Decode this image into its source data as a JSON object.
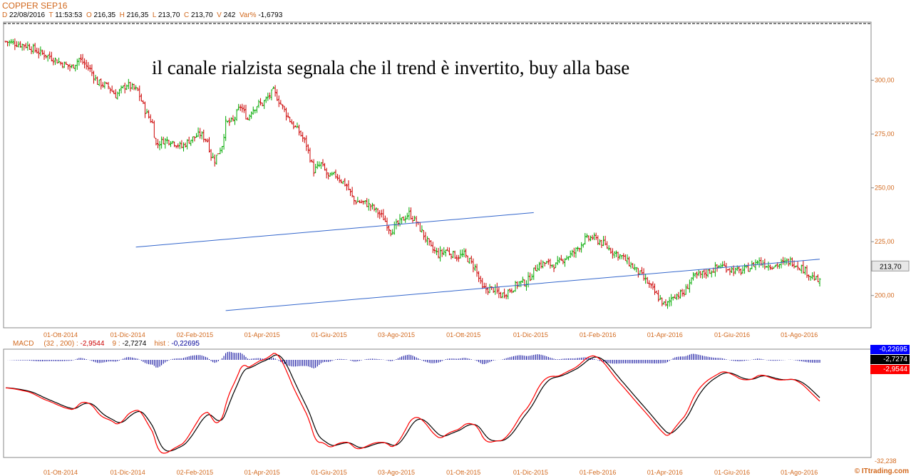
{
  "header": {
    "symbol": "COPPER SEP16",
    "date_k": "D",
    "date": "22/08/2016",
    "time_k": "T",
    "time": "11:53:53",
    "open_k": "O",
    "open": "216,35",
    "high_k": "H",
    "high": "216,35",
    "low_k": "L",
    "low": "213,70",
    "close_k": "C",
    "close": "213,70",
    "vol_k": "V",
    "vol": "242",
    "var_k": "Var%",
    "var": "-1,6793"
  },
  "annotation": "il canale rialzista segnala che il trend è invertito, buy alla base",
  "watermark": "© ITtrading.com",
  "macd_header": {
    "name": "MACD",
    "params": "(32 , 200) :",
    "macd_value": "-2,9544",
    "signal_k": "9 :",
    "signal_value": "-2,7274",
    "hist_k": "hist :",
    "hist_value": "-0,22695"
  },
  "macd_badges": [
    {
      "label": "-0,22695",
      "bg": "#0000ff",
      "fg": "#ffffff"
    },
    {
      "label": "-2,7274",
      "bg": "#000000",
      "fg": "#ffffff"
    },
    {
      "label": "-2,9544",
      "bg": "#ff0000",
      "fg": "#ffffff"
    }
  ],
  "macd_axis_bottom": "-32,238",
  "last_price_label": "213,70",
  "colors": {
    "up": "#00aa00",
    "down": "#cc0000",
    "channel": "#3366cc",
    "macd": "#000000",
    "signal": "#ff0000",
    "hist": "#000099",
    "axis_text": "#d2691e"
  },
  "chart_data": [
    {
      "type": "ohlc",
      "title": "COPPER SEP16",
      "y_ticks": [
        200,
        225,
        250,
        275,
        300
      ],
      "y_tick_labels": [
        "200,00",
        "225,00",
        "250,00",
        "275,00",
        "300,00"
      ],
      "ylim": [
        185,
        327
      ],
      "x_tick_labels": [
        "01-Ott-2014",
        "01-Dic-2014",
        "02-Feb-2015",
        "01-Apr-2015",
        "01-Giu-2015",
        "03-Ago-2015",
        "01-Ott-2015",
        "01-Dic-2015",
        "01-Feb-2016",
        "01-Apr-2016",
        "01-Giu-2016",
        "01-Ago-2016"
      ],
      "close_path": [
        [
          0,
          318
        ],
        [
          6,
          317
        ],
        [
          12,
          316
        ],
        [
          18,
          313
        ],
        [
          24,
          311
        ],
        [
          30,
          308
        ],
        [
          36,
          306
        ],
        [
          40,
          310
        ],
        [
          46,
          305
        ],
        [
          50,
          299
        ],
        [
          56,
          297
        ],
        [
          60,
          293
        ],
        [
          66,
          298
        ],
        [
          72,
          295
        ],
        [
          76,
          286
        ],
        [
          80,
          280
        ],
        [
          82,
          270
        ],
        [
          86,
          272
        ],
        [
          90,
          272
        ],
        [
          96,
          269
        ],
        [
          100,
          272
        ],
        [
          106,
          275
        ],
        [
          110,
          272
        ],
        [
          112,
          265
        ],
        [
          114,
          263
        ],
        [
          118,
          270
        ],
        [
          120,
          280
        ],
        [
          124,
          281
        ],
        [
          128,
          288
        ],
        [
          132,
          282
        ],
        [
          134,
          286
        ],
        [
          138,
          289
        ],
        [
          140,
          289
        ],
        [
          146,
          295
        ],
        [
          150,
          289
        ],
        [
          156,
          280
        ],
        [
          160,
          276
        ],
        [
          164,
          270
        ],
        [
          168,
          258
        ],
        [
          172,
          261
        ],
        [
          176,
          255
        ],
        [
          180,
          256
        ],
        [
          186,
          251
        ],
        [
          190,
          244
        ],
        [
          196,
          243
        ],
        [
          200,
          241
        ],
        [
          206,
          236
        ],
        [
          210,
          230
        ],
        [
          216,
          235
        ],
        [
          220,
          238
        ],
        [
          224,
          234
        ],
        [
          228,
          228
        ],
        [
          232,
          222
        ],
        [
          236,
          219
        ],
        [
          240,
          221
        ],
        [
          246,
          218
        ],
        [
          250,
          219
        ],
        [
          256,
          213
        ],
        [
          260,
          203
        ],
        [
          266,
          203
        ],
        [
          270,
          200
        ],
        [
          276,
          203
        ],
        [
          280,
          206
        ],
        [
          284,
          206
        ],
        [
          290,
          214
        ],
        [
          294,
          215
        ],
        [
          300,
          214
        ],
        [
          304,
          217
        ],
        [
          310,
          220
        ],
        [
          316,
          226
        ],
        [
          320,
          227
        ],
        [
          326,
          224
        ],
        [
          330,
          221
        ],
        [
          336,
          218
        ],
        [
          340,
          215
        ],
        [
          346,
          210
        ],
        [
          350,
          206
        ],
        [
          356,
          199
        ],
        [
          360,
          195
        ],
        [
          364,
          200
        ],
        [
          370,
          201
        ],
        [
          374,
          208
        ],
        [
          380,
          210
        ],
        [
          386,
          212
        ],
        [
          390,
          214
        ],
        [
          396,
          212
        ],
        [
          400,
          211
        ],
        [
          406,
          213
        ],
        [
          410,
          216
        ],
        [
          416,
          214
        ],
        [
          420,
          214
        ],
        [
          424,
          215
        ],
        [
          428,
          216
        ],
        [
          434,
          213
        ],
        [
          438,
          210
        ],
        [
          444,
          206
        ]
      ],
      "channel_upper": [
        [
          71,
          222.5
        ],
        [
          288,
          238.5
        ]
      ],
      "channel_lower": [
        [
          120,
          193
        ],
        [
          310,
          207
        ]
      ],
      "last": 213.7
    },
    {
      "type": "macd",
      "params": "(32 , 200)",
      "values_hist_last": -0.22695,
      "values_signal_last": -2.7274,
      "values_macd_last": -2.9544
    }
  ]
}
